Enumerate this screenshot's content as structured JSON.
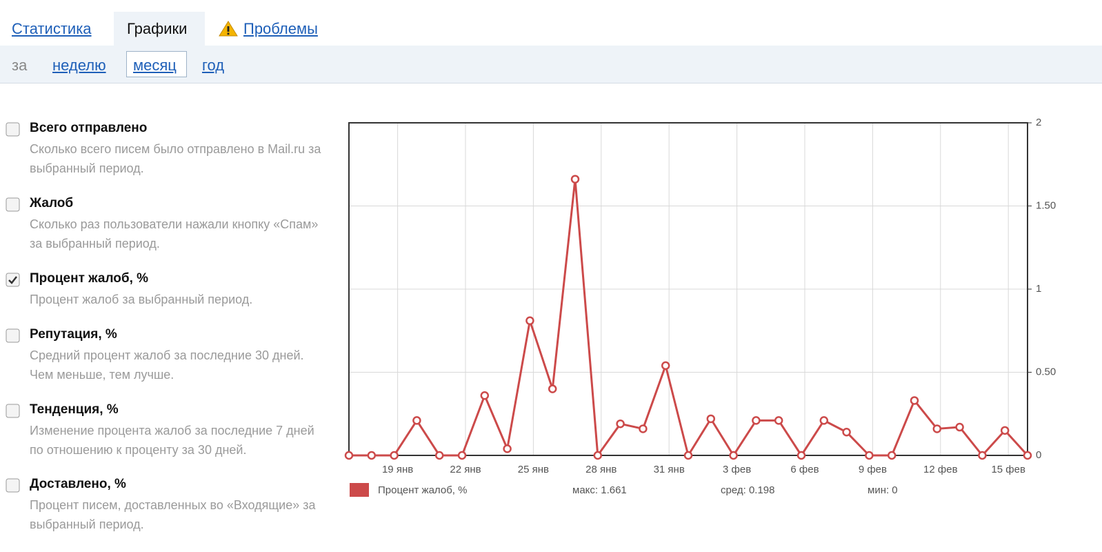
{
  "tabs": [
    "Статистика",
    "Графики",
    "Проблемы"
  ],
  "period": {
    "label": "за",
    "options": [
      "неделю",
      "месяц",
      "год"
    ]
  },
  "metrics": [
    {
      "title": "Всего отправлено",
      "description": "Сколько всего писем было отправлено в Mail.ru за выбранный период.",
      "checked": false
    },
    {
      "title": "Жалоб",
      "description": "Сколько раз пользователи нажали кнопку «Спам» за выбранный период.",
      "checked": false
    },
    {
      "title": "Процент жалоб, %",
      "description": "Процент жалоб за выбранный период.",
      "checked": true
    },
    {
      "title": "Репутация, %",
      "description": "Средний процент жалоб за последние 30 дней. Чем меньше, тем лучше.",
      "checked": false
    },
    {
      "title": "Тенденция, %",
      "description": "Изменение процента жалоб за последние 7 дней по отношению к проценту за 30 дней.",
      "checked": false
    },
    {
      "title": "Доставлено, %",
      "description": "Процент писем, доставленных во «Входящие» за выбранный период.",
      "checked": false
    }
  ],
  "chart_data": {
    "type": "line",
    "categories": [
      null,
      null,
      "19 янв",
      null,
      null,
      "22 янв",
      null,
      null,
      "25 янв",
      null,
      null,
      "28 янв",
      null,
      null,
      "31 янв",
      null,
      null,
      "3 фев",
      null,
      null,
      "6 фев",
      null,
      null,
      "9 фев",
      null,
      null,
      "12 фев",
      null,
      null,
      "15 фев",
      null
    ],
    "series": [
      {
        "name": "Процент жалоб, %",
        "color": "#cc4a4a",
        "values": [
          0,
          0,
          0,
          0.21,
          0,
          0,
          0.36,
          0.04,
          0.81,
          0.4,
          1.661,
          0,
          0.19,
          0.16,
          0.54,
          0,
          0.22,
          0,
          0.21,
          0.21,
          0,
          0.21,
          0.14,
          0,
          0,
          0.33,
          0.16,
          0.17,
          0,
          0.15,
          0
        ]
      }
    ],
    "ylim": [
      0,
      2
    ],
    "yticks": [
      0,
      {
        "value": 0.5,
        "label": "0.50"
      },
      1,
      {
        "value": 1.5,
        "label": "1.50"
      },
      2
    ],
    "grid": true,
    "stats": [
      "макс: 1.661",
      "сред: 0.198",
      "мин: 0"
    ]
  }
}
